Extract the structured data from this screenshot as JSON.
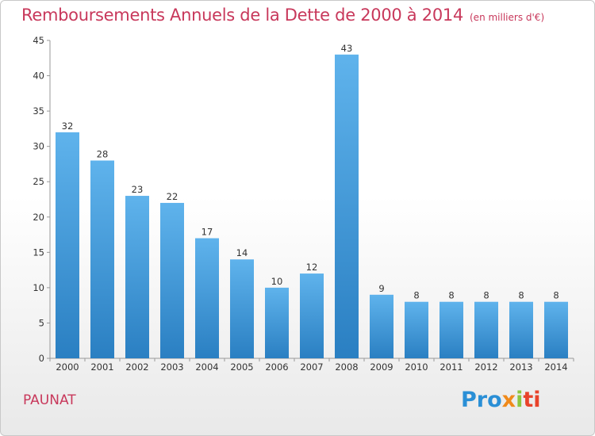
{
  "header": {
    "title": "Remboursements Annuels de la Dette de 2000 à 2014",
    "subtitle": "(en milliers d'€)"
  },
  "footer": {
    "commune": "PAUNAT",
    "logo_parts": [
      "Pro",
      "x",
      "i",
      "ti"
    ]
  },
  "colors": {
    "title": "#c8385b",
    "bar_top": "#5fb3ec",
    "bar_bottom": "#2a7fc2",
    "axis": "#999999",
    "logo_blue": "#2a8fd6",
    "logo_orange": "#f08a1a",
    "logo_green": "#8cc63f",
    "logo_red": "#e8432b"
  },
  "chart_data": {
    "type": "bar",
    "title": "Remboursements Annuels de la Dette de 2000 à 2014",
    "subtitle": "(en milliers d'€)",
    "categories": [
      "2000",
      "2001",
      "2002",
      "2003",
      "2004",
      "2005",
      "2006",
      "2007",
      "2008",
      "2009",
      "2010",
      "2011",
      "2012",
      "2013",
      "2014"
    ],
    "values": [
      32,
      28,
      23,
      22,
      17,
      14,
      10,
      12,
      43,
      9,
      8,
      8,
      8,
      8,
      8
    ],
    "ylim": [
      0,
      45
    ],
    "yticks": [
      0,
      5,
      10,
      15,
      20,
      25,
      30,
      35,
      40,
      45
    ],
    "grid": false,
    "legend": "none"
  }
}
